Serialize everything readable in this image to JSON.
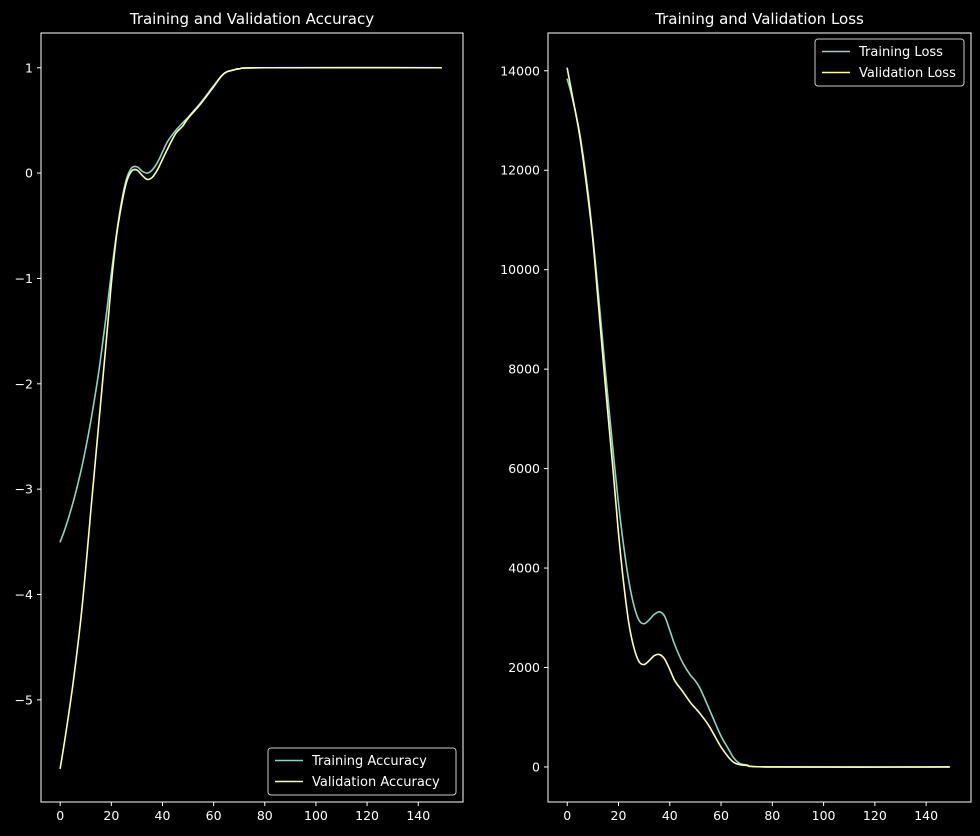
{
  "chart_data": [
    {
      "type": "line",
      "title": "Training and Validation Accuracy",
      "xlabel": "",
      "ylabel": "",
      "xlim": [
        -7.5,
        157.5
      ],
      "ylim": [
        -5.97,
        1.33
      ],
      "x_ticks": [
        0,
        20,
        40,
        60,
        80,
        100,
        120,
        140
      ],
      "x_tick_labels": [
        "0",
        "20",
        "40",
        "60",
        "80",
        "100",
        "120",
        "140"
      ],
      "y_ticks": [
        1,
        0,
        -1,
        -2,
        -3,
        -4,
        -5
      ],
      "y_tick_labels": [
        "1",
        "0",
        "−1",
        "−2",
        "−3",
        "−4",
        "−5"
      ],
      "legend_position": "bottom-right",
      "series": [
        {
          "name": "Training Accuracy",
          "color": "#8dd3c7",
          "x": [
            0,
            2,
            5,
            8,
            10,
            12,
            15,
            18,
            20,
            22,
            24,
            26,
            28,
            30,
            32,
            34,
            36,
            38,
            40,
            42,
            45,
            48,
            50,
            55,
            60,
            63,
            65,
            68,
            70,
            80,
            149
          ],
          "y": [
            -3.5,
            -3.37,
            -3.13,
            -2.84,
            -2.61,
            -2.35,
            -1.9,
            -1.35,
            -0.95,
            -0.58,
            -0.27,
            -0.05,
            0.05,
            0.06,
            0.02,
            0.0,
            0.03,
            0.1,
            0.2,
            0.3,
            0.4,
            0.48,
            0.53,
            0.67,
            0.83,
            0.92,
            0.96,
            0.98,
            0.99,
            1.0,
            1.0
          ]
        },
        {
          "name": "Validation Accuracy",
          "color": "#ffffb3",
          "x": [
            0,
            2,
            5,
            8,
            10,
            12,
            15,
            18,
            20,
            22,
            24,
            26,
            28,
            30,
            32,
            34,
            36,
            38,
            40,
            42,
            45,
            48,
            50,
            55,
            60,
            63,
            65,
            68,
            70,
            80,
            149
          ],
          "y": [
            -5.65,
            -5.35,
            -4.85,
            -4.25,
            -3.75,
            -3.2,
            -2.4,
            -1.6,
            -1.05,
            -0.6,
            -0.3,
            -0.08,
            0.02,
            0.03,
            -0.02,
            -0.06,
            -0.04,
            0.03,
            0.13,
            0.23,
            0.37,
            0.45,
            0.52,
            0.66,
            0.82,
            0.92,
            0.96,
            0.98,
            0.99,
            1.0,
            1.0
          ]
        }
      ]
    },
    {
      "type": "line",
      "title": "Training and Validation Loss",
      "xlabel": "",
      "ylabel": "",
      "xlim": [
        -7.5,
        157.5
      ],
      "ylim": [
        -705,
        14760
      ],
      "x_ticks": [
        0,
        20,
        40,
        60,
        80,
        100,
        120,
        140
      ],
      "x_tick_labels": [
        "0",
        "20",
        "40",
        "60",
        "80",
        "100",
        "120",
        "140"
      ],
      "y_ticks": [
        0,
        2000,
        4000,
        6000,
        8000,
        10000,
        12000,
        14000
      ],
      "y_tick_labels": [
        "0",
        "2000",
        "4000",
        "6000",
        "8000",
        "10000",
        "12000",
        "14000"
      ],
      "legend_position": "top-right",
      "series": [
        {
          "name": "Training Loss",
          "color": "#8dd3c7",
          "x": [
            0,
            2,
            5,
            8,
            10,
            12,
            15,
            18,
            20,
            22,
            24,
            26,
            28,
            30,
            32,
            34,
            36,
            38,
            40,
            42,
            45,
            48,
            50,
            52,
            55,
            58,
            60,
            63,
            65,
            67,
            70,
            80,
            149
          ],
          "y": [
            13830,
            13450,
            12700,
            11600,
            10650,
            9600,
            7900,
            6300,
            5300,
            4450,
            3750,
            3250,
            2950,
            2880,
            2960,
            3070,
            3120,
            3030,
            2750,
            2450,
            2100,
            1850,
            1730,
            1560,
            1210,
            850,
            620,
            350,
            180,
            80,
            40,
            0,
            0
          ]
        },
        {
          "name": "Validation Loss",
          "color": "#ffffb3",
          "x": [
            0,
            2,
            5,
            8,
            10,
            12,
            15,
            18,
            20,
            22,
            24,
            26,
            28,
            30,
            32,
            34,
            36,
            38,
            40,
            42,
            45,
            48,
            50,
            52,
            55,
            58,
            60,
            63,
            65,
            67,
            70,
            80,
            149
          ],
          "y": [
            14050,
            13500,
            12650,
            11500,
            10600,
            9400,
            7600,
            5900,
            4700,
            3700,
            2900,
            2400,
            2120,
            2060,
            2140,
            2240,
            2260,
            2170,
            1960,
            1730,
            1520,
            1300,
            1180,
            1060,
            850,
            580,
            400,
            190,
            90,
            50,
            30,
            0,
            0
          ]
        }
      ]
    }
  ]
}
